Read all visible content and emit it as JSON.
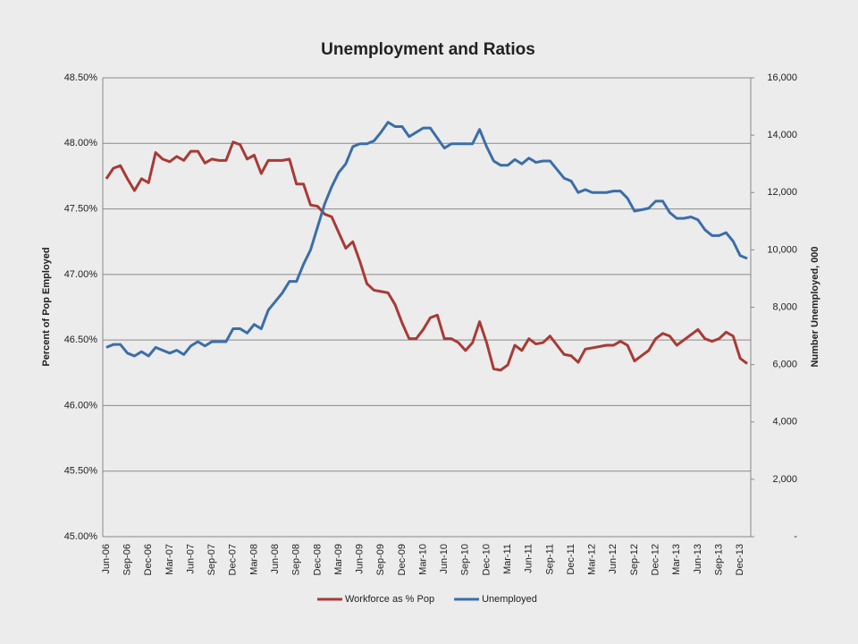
{
  "chart_data": {
    "type": "line",
    "title": "Unemployment and Ratios",
    "y_label": "Percent of Pop Employed",
    "y2_label": "Number Unemployed, 000",
    "categories": [
      "Jun-06",
      null,
      null,
      "Sep-06",
      null,
      null,
      "Dec-06",
      null,
      null,
      "Mar-07",
      null,
      null,
      "Jun-07",
      null,
      null,
      "Sep-07",
      null,
      null,
      "Dec-07",
      null,
      null,
      "Mar-08",
      null,
      null,
      "Jun-08",
      null,
      null,
      "Sep-08",
      null,
      null,
      "Dec-08",
      null,
      null,
      "Mar-09",
      null,
      null,
      "Jun-09",
      null,
      null,
      "Sep-09",
      null,
      null,
      "Dec-09",
      null,
      null,
      "Mar-10",
      null,
      null,
      "Jun-10",
      null,
      null,
      "Sep-10",
      null,
      null,
      "Dec-10",
      null,
      null,
      "Mar-11",
      null,
      null,
      "Jun-11",
      null,
      null,
      "Sep-11",
      null,
      null,
      "Dec-11",
      null,
      null,
      "Mar-12",
      null,
      null,
      "Jun-12",
      null,
      null,
      "Sep-12",
      null,
      null,
      "Dec-12",
      null,
      null,
      "Mar-13",
      null,
      null,
      "Jun-13",
      null,
      null,
      "Sep-13",
      null,
      null,
      "Dec-13",
      null
    ],
    "series": [
      {
        "name": "Workforce as % Pop",
        "color": "#a83a36",
        "values": [
          47.73,
          47.81,
          47.83,
          47.73,
          47.64,
          47.73,
          47.7,
          47.93,
          47.88,
          47.86,
          47.9,
          47.87,
          47.94,
          47.94,
          47.85,
          47.88,
          47.87,
          47.87,
          48.01,
          47.99,
          47.88,
          47.91,
          47.77,
          47.87,
          47.87,
          47.87,
          47.88,
          47.69,
          47.69,
          47.53,
          47.52,
          47.46,
          47.44,
          47.32,
          47.2,
          47.25,
          47.1,
          46.93,
          46.88,
          46.87,
          46.86,
          46.77,
          46.63,
          46.51,
          46.51,
          46.58,
          46.67,
          46.69,
          46.51,
          46.51,
          46.48,
          46.42,
          46.48,
          46.64,
          46.48,
          46.28,
          46.27,
          46.31,
          46.46,
          46.42,
          46.51,
          46.47,
          46.48,
          46.53,
          46.46,
          46.39,
          46.38,
          46.33,
          46.43,
          46.44,
          46.45,
          46.46,
          46.46,
          46.49,
          46.46,
          46.34,
          46.38,
          46.42,
          46.51,
          46.55,
          46.53,
          46.46,
          46.5,
          46.54,
          46.58,
          46.51,
          46.49,
          46.51,
          46.56,
          46.53,
          46.36,
          46.32
        ]
      },
      {
        "name": "Unemployed",
        "color": "#3b6ea8",
        "axis": "y2",
        "values": [
          6600,
          6700,
          6700,
          6400,
          6300,
          6450,
          6300,
          6600,
          6500,
          6400,
          6500,
          6350,
          6650,
          6800,
          6650,
          6800,
          6800,
          6800,
          7250,
          7250,
          7100,
          7400,
          7250,
          7900,
          8200,
          8500,
          8900,
          8900,
          9500,
          10000,
          10800,
          11600,
          12200,
          12700,
          13000,
          13600,
          13700,
          13700,
          13800,
          14100,
          14450,
          14300,
          14300,
          13950,
          14100,
          14250,
          14250,
          13900,
          13550,
          13700,
          13700,
          13700,
          13700,
          14200,
          13600,
          13100,
          12950,
          12950,
          13150,
          13000,
          13200,
          13050,
          13100,
          13100,
          12800,
          12500,
          12400,
          12000,
          12100,
          12000,
          12000,
          12000,
          12050,
          12050,
          11800,
          11350,
          11400,
          11450,
          11700,
          11700,
          11300,
          11100,
          11100,
          11150,
          11050,
          10700,
          10500,
          10500,
          10600,
          10300,
          9800,
          9700
        ]
      }
    ],
    "ylim": [
      45,
      48.5
    ],
    "yticks": [
      {
        "value": 45,
        "label": "45.00%"
      },
      {
        "value": 45.5,
        "label": "45.50%"
      },
      {
        "value": 46,
        "label": "46.00%"
      },
      {
        "value": 46.5,
        "label": "46.50%"
      },
      {
        "value": 47,
        "label": "47.00%"
      },
      {
        "value": 47.5,
        "label": "47.50%"
      },
      {
        "value": 48,
        "label": "48.00%"
      },
      {
        "value": 48.5,
        "label": "48.50%"
      }
    ],
    "y2lim": [
      0,
      16000
    ],
    "y2ticks": [
      {
        "value": 0,
        "label": "-"
      },
      {
        "value": 2000,
        "label": "2,000"
      },
      {
        "value": 4000,
        "label": "4,000"
      },
      {
        "value": 6000,
        "label": "6,000"
      },
      {
        "value": 8000,
        "label": "8,000"
      },
      {
        "value": 10000,
        "label": "10,000"
      },
      {
        "value": 12000,
        "label": "12,000"
      },
      {
        "value": 14000,
        "label": "14,000"
      },
      {
        "value": 16000,
        "label": "16,000"
      }
    ],
    "grid": true,
    "legend": "bottom"
  }
}
